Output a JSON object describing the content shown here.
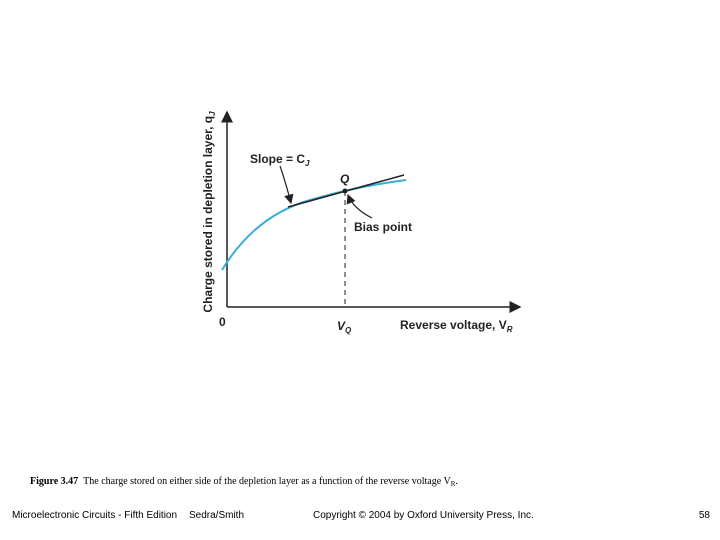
{
  "figure": {
    "y_axis_label": {
      "text": "Charge stored in depletion layer, q",
      "sub": "J"
    },
    "slope_label": {
      "text": "Slope = C",
      "sub": "J"
    },
    "point_label": "Q",
    "bias_label": "Bias point",
    "origin_label": "0",
    "vq_label": {
      "text": "V",
      "sub": "Q"
    },
    "x_axis_label": {
      "text": "Reverse voltage, V",
      "sub": "R"
    }
  },
  "caption": {
    "number": "Figure 3.47",
    "text": "The charge stored on either side of the depletion layer as a function of the reverse voltage V",
    "sub": "R",
    "end": "."
  },
  "footer": {
    "book": "Microelectronic Circuits - Fifth Edition",
    "authors": "Sedra/Smith",
    "copyright": "Copyright © 2004 by Oxford University Press, Inc.",
    "page": "58"
  }
}
